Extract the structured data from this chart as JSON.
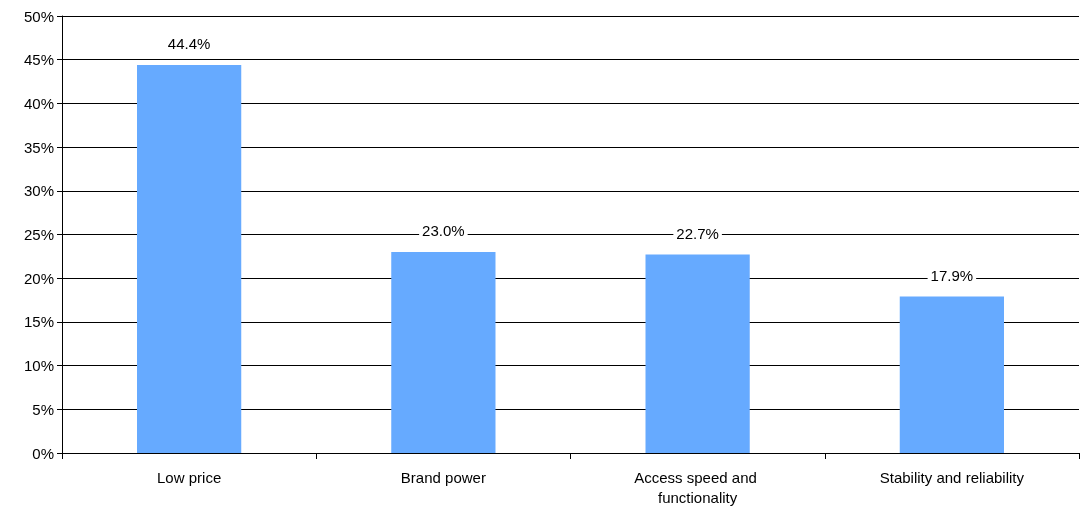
{
  "chart_data": {
    "type": "bar",
    "categories": [
      "Low price",
      "Brand power",
      "Access speed and functionality",
      "Stability and reliability"
    ],
    "values": [
      44.4,
      23.0,
      22.7,
      17.9
    ],
    "color": "#66aaff",
    "value_labels": [
      "44.4%",
      "23.0%",
      "22.7%",
      "17.9%"
    ],
    "ylim": [
      0,
      50
    ],
    "yticks": [
      {
        "value": 0,
        "label": "0%"
      },
      {
        "value": 5,
        "label": "5%"
      },
      {
        "value": 10,
        "label": "10%"
      },
      {
        "value": 15,
        "label": "15%"
      },
      {
        "value": 20,
        "label": "20%"
      },
      {
        "value": 25,
        "label": "25%"
      },
      {
        "value": 30,
        "label": "30%"
      },
      {
        "value": 35,
        "label": "35%"
      },
      {
        "value": 40,
        "label": "40%"
      },
      {
        "value": 45,
        "label": "45%"
      },
      {
        "value": 50,
        "label": "50%"
      }
    ],
    "grid": "y"
  }
}
